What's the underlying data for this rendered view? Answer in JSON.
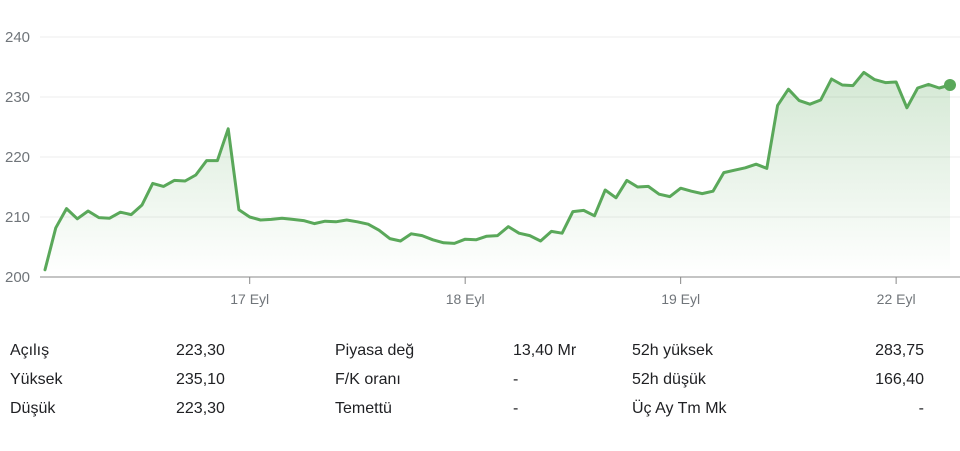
{
  "colors": {
    "line": "#5aa85a",
    "fill": "#5aa85a",
    "grid": "#ececec",
    "axis": "#888888"
  },
  "chart_data": {
    "type": "area",
    "ylim": [
      200,
      240
    ],
    "yticks": [
      "240",
      "230",
      "220",
      "210",
      "200"
    ],
    "ytick_values": [
      240,
      230,
      220,
      210,
      200
    ],
    "xticks": [
      "17 Eyl",
      "18 Eyl",
      "19 Eyl",
      "22 Eyl"
    ],
    "xtick_positions": [
      19,
      39,
      59,
      79
    ],
    "grid": true,
    "series": [
      {
        "values": [
          201.2,
          208.2,
          211.4,
          209.7,
          211.0,
          209.9,
          209.8,
          210.8,
          210.4,
          212.0,
          215.6,
          215.1,
          216.1,
          216.0,
          217.0,
          219.4,
          219.4,
          224.7,
          211.2,
          210.0,
          209.5,
          209.6,
          209.8,
          209.6,
          209.4,
          208.9,
          209.3,
          209.2,
          209.5,
          209.2,
          208.8,
          207.8,
          206.4,
          206.0,
          207.2,
          206.9,
          206.2,
          205.7,
          205.6,
          206.3,
          206.2,
          206.8,
          206.9,
          208.4,
          207.3,
          206.9,
          206.0,
          207.6,
          207.3,
          210.9,
          211.1,
          210.2,
          214.5,
          213.2,
          216.1,
          215.0,
          215.1,
          213.8,
          213.4,
          214.8,
          214.3,
          213.9,
          214.3,
          217.4,
          217.8,
          218.2,
          218.8,
          218.1,
          228.6,
          231.3,
          229.4,
          228.8,
          229.5,
          233.0,
          232.0,
          231.9,
          234.1,
          232.9,
          232.4,
          232.5,
          228.2,
          231.5,
          232.1,
          231.5,
          232.0
        ]
      }
    ]
  },
  "stats": {
    "rows": [
      {
        "l1": "Açılış",
        "v1": "223,30",
        "l2": "Piyasa değ",
        "v2": "13,40 Mr",
        "l3": "52h yüksek",
        "v3": "283,75"
      },
      {
        "l1": "Yüksek",
        "v1": "235,10",
        "l2": "F/K oranı",
        "v2": "-",
        "l3": "52h düşük",
        "v3": "166,40"
      },
      {
        "l1": "Düşük",
        "v1": "223,30",
        "l2": "Temettü",
        "v2": "-",
        "l3": "Üç Ay Tm Mk",
        "v3": "-"
      }
    ]
  }
}
